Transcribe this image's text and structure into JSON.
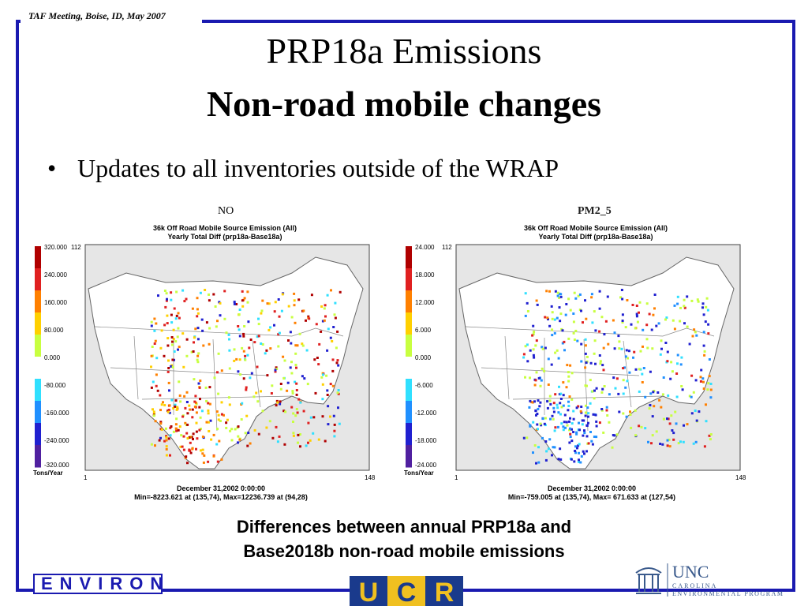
{
  "header": {
    "meeting": "TAF Meeting, Boise, ID, May 2007"
  },
  "title": {
    "line1": "PRP18a Emissions",
    "line2": "Non-road mobile changes"
  },
  "bullet": {
    "marker": "•",
    "text": "Updates to all inventories outside of the WRAP"
  },
  "maps": [
    {
      "species": "NO",
      "heading1": "36k Off Road Mobile Source Emission (All)",
      "heading2": "Yearly Total Diff (prp18a-Base18a)",
      "scale": [
        "320.000",
        "240.000",
        "160.000",
        "80.000",
        "0.000",
        "-80.000",
        "-160.000",
        "-240.000",
        "-320.000"
      ],
      "units": "Tons/Year",
      "axis": {
        "ymax": "112",
        "xmin": "1",
        "xmax": "148",
        "ymin": "1"
      },
      "date": "December 31,2002 0:00:00",
      "minmax": "Min=-8223.621 at (135,74), Max=12236.739 at (94,28)"
    },
    {
      "species": "PM2_5",
      "heading1": "36k Off Road Mobile Source Emission (All)",
      "heading2": "Yearly Total Diff (prp18a-Base18a)",
      "scale": [
        "24.000",
        "18.000",
        "12.000",
        "6.000",
        "0.000",
        "-6.000",
        "-12.000",
        "-18.000",
        "-24.000"
      ],
      "units": "Tons/Year",
      "axis": {
        "ymax": "112",
        "xmin": "1",
        "xmax": "148",
        "ymin": "1"
      },
      "date": "December 31,2002 0:00:00",
      "minmax": "Min=-759.005 at (135,74), Max= 671.633 at (127,54)"
    }
  ],
  "caption": {
    "line1": "Differences between annual PRP18a and",
    "line2": "Base2018b non-road mobile emissions"
  },
  "logos": {
    "environ": "ENVIRON",
    "ucr": [
      "U",
      "C",
      "R"
    ],
    "unc": {
      "word": "UNC",
      "line1": "CAROLINA",
      "line2": "ENVIRONMENTAL PROGRAM"
    }
  },
  "colors": {
    "frame": "#1a1ab0",
    "scale": [
      "#b00000",
      "#e02020",
      "#ff8000",
      "#ffd000",
      "#c8ff40",
      "#ffffff",
      "#30e0ff",
      "#2090ff",
      "#2020d0",
      "#5020a0"
    ]
  }
}
